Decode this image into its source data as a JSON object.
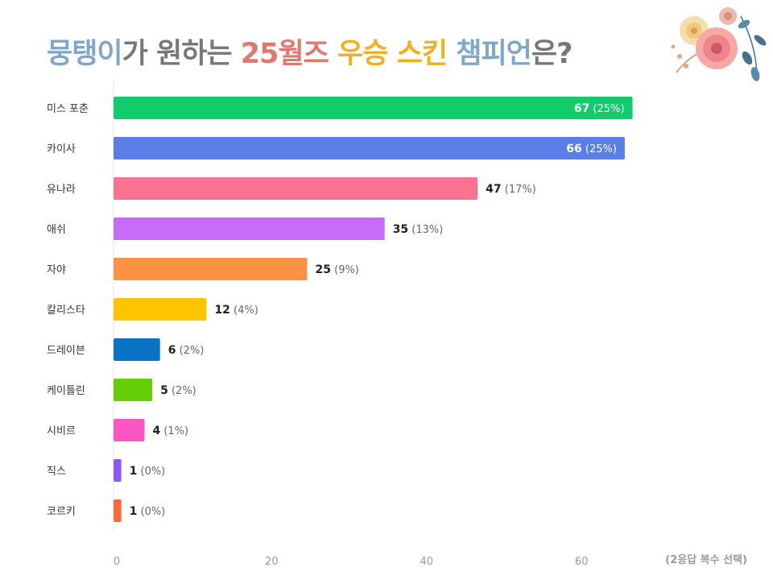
{
  "title": {
    "segments": [
      {
        "text": "뭉탱이",
        "color": "#7ea7c9"
      },
      {
        "text": "가 원하는 ",
        "color": "#777777"
      },
      {
        "text": "25월즈",
        "color": "#e2776d"
      },
      {
        "text": " ",
        "color": "#777777"
      },
      {
        "text": "우승 스킨",
        "color": "#f2b01e"
      },
      {
        "text": " ",
        "color": "#777777"
      },
      {
        "text": "챔피언",
        "color": "#7ea7c9"
      },
      {
        "text": "은?",
        "color": "#777777"
      }
    ]
  },
  "footnote": "(2응답 복수 선택)",
  "decoration": {
    "icon": "flower-bouquet-icon"
  },
  "chart_data": {
    "type": "bar",
    "orientation": "horizontal",
    "title": "뭉탱이가 원하는 25월즈 우승 스킨 챔피언은?",
    "categories": [
      "미스 포춘",
      "카이사",
      "유나라",
      "애쉬",
      "자야",
      "칼리스타",
      "드레이븐",
      "케이틀린",
      "시비르",
      "직스",
      "코르키"
    ],
    "values": [
      67,
      66,
      47,
      35,
      25,
      12,
      6,
      5,
      4,
      1,
      1
    ],
    "percents": [
      "(25%)",
      "(25%)",
      "(17%)",
      "(13%)",
      "(9%)",
      "(4%)",
      "(2%)",
      "(2%)",
      "(1%)",
      "(0%)",
      "(0%)"
    ],
    "colors": [
      "#10cc6a",
      "#5a7de8",
      "#fb7192",
      "#c86bfa",
      "#fd9245",
      "#fdc400",
      "#0873c4",
      "#65cd03",
      "#fb56c3",
      "#8c59f7",
      "#fd6635"
    ],
    "inside_label": [
      true,
      true,
      false,
      false,
      false,
      false,
      false,
      false,
      false,
      false,
      false
    ],
    "xlim": [
      0,
      68
    ],
    "xticks": [
      0,
      20,
      40,
      60
    ],
    "xlabel": "",
    "ylabel": "",
    "grid": false,
    "legend": "none"
  }
}
